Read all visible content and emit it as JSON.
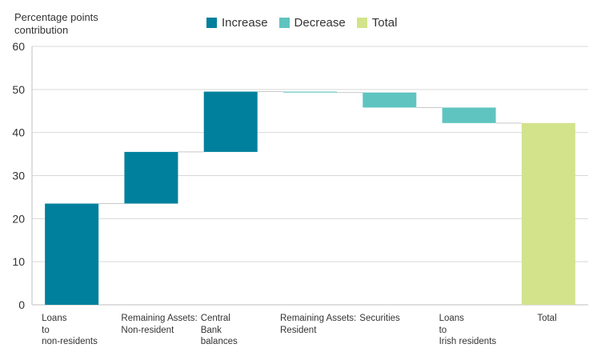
{
  "colors": {
    "increase": "#00809c",
    "decrease": "#5fc4c0",
    "total": "#d2e38b",
    "grid": "#d9d9d9",
    "axis": "#bfbfbf",
    "connector": "#c8c8c8"
  },
  "legend": [
    {
      "label": "Increase",
      "key": "increase"
    },
    {
      "label": "Decrease",
      "key": "decrease"
    },
    {
      "label": "Total",
      "key": "total"
    }
  ],
  "chart_data": {
    "type": "bar",
    "subtype": "waterfall",
    "ylabel_lines": [
      "Percentage  points",
      "contribution"
    ],
    "ylim": [
      0,
      60
    ],
    "yticks": [
      0,
      10,
      20,
      30,
      40,
      50,
      60
    ],
    "grid": true,
    "legend_position": "top-center",
    "categories": [
      {
        "lines": [
          "Loans",
          "to",
          "non-residents"
        ],
        "start": 0,
        "end": 23.5,
        "kind": "increase"
      },
      {
        "lines": [
          "Remaining Assets:",
          "Non-resident"
        ],
        "start": 23.5,
        "end": 35.5,
        "kind": "increase"
      },
      {
        "lines": [
          "Central",
          "Bank",
          "balances"
        ],
        "start": 35.5,
        "end": 49.5,
        "kind": "increase"
      },
      {
        "lines": [
          "Remaining Assets:",
          "Resident"
        ],
        "start": 49.5,
        "end": 49.3,
        "kind": "decrease"
      },
      {
        "lines": [
          "Securities"
        ],
        "start": 49.3,
        "end": 45.8,
        "kind": "decrease"
      },
      {
        "lines": [
          "Loans",
          "to",
          "Irish residents"
        ],
        "start": 45.8,
        "end": 42.2,
        "kind": "decrease"
      },
      {
        "lines": [
          "Total"
        ],
        "start": 0,
        "end": 42.2,
        "kind": "total"
      }
    ]
  }
}
